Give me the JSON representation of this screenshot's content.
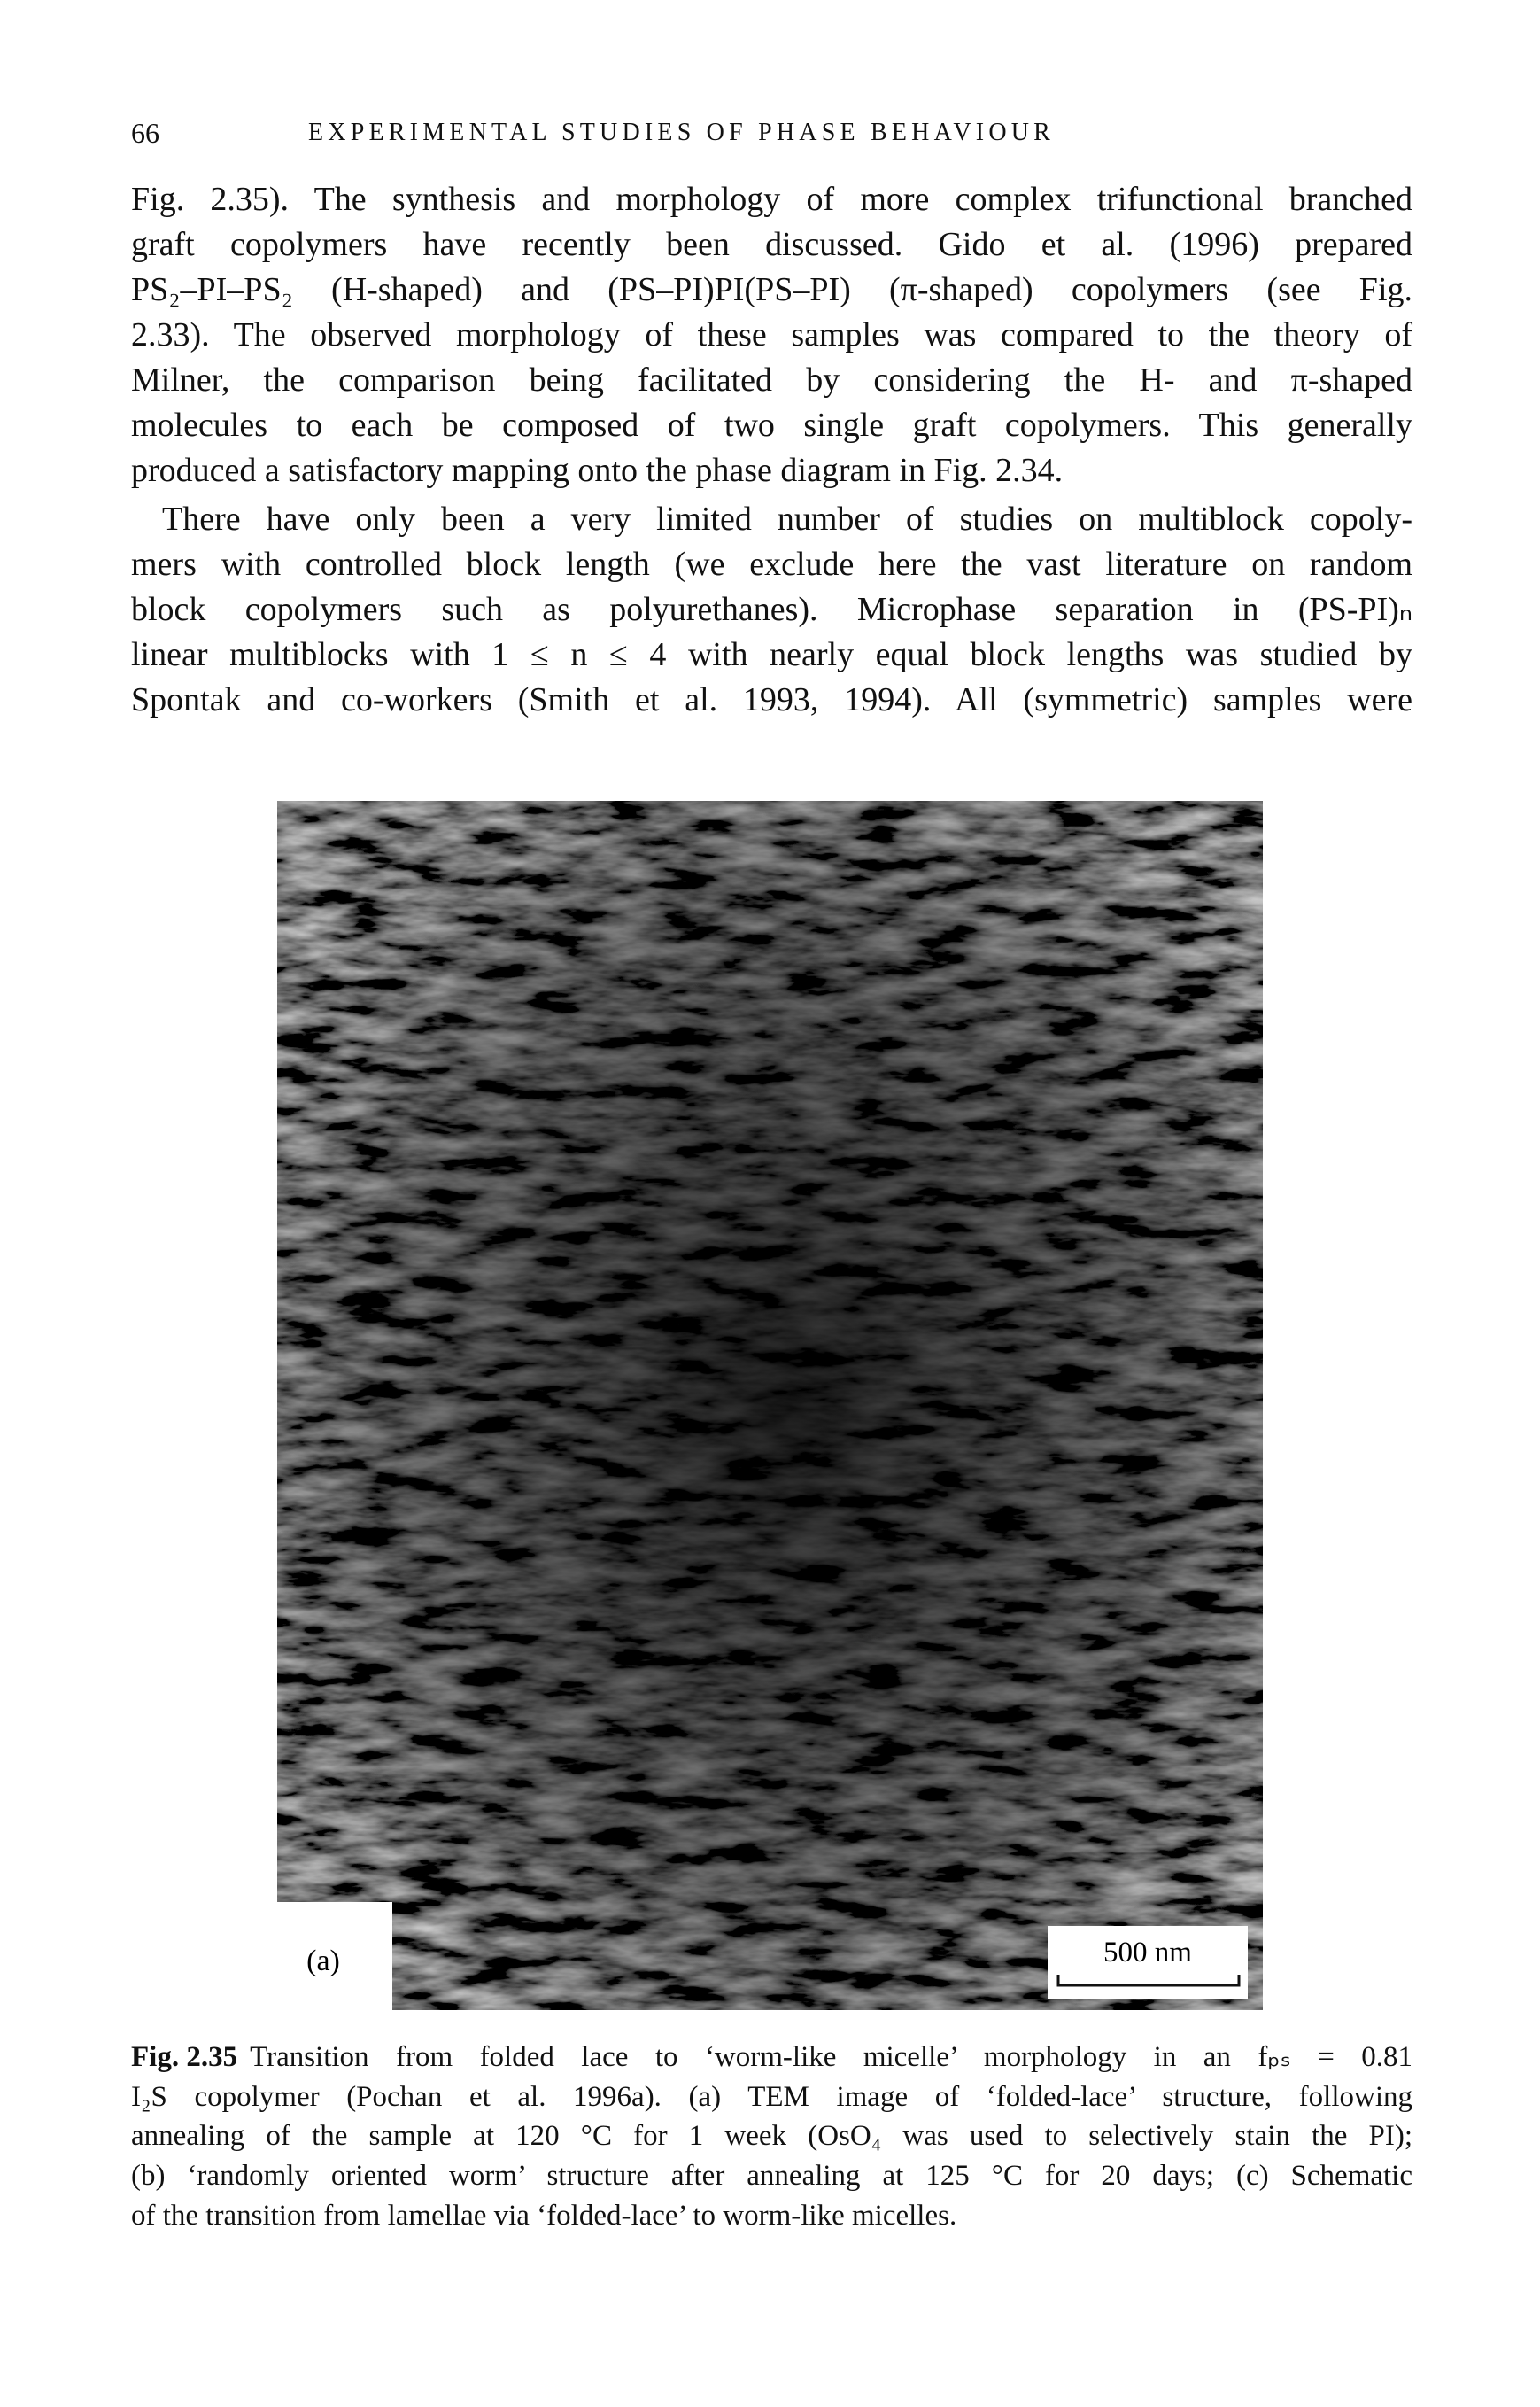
{
  "header": {
    "page_number": "66",
    "running_title": "EXPERIMENTAL STUDIES OF PHASE BEHAVIOUR"
  },
  "body": {
    "paragraphs": [
      [
        "Fig. 2.35). The synthesis and morphology of more complex trifunctional branched",
        "graft copolymers have recently been discussed. Gido et al. (1996) prepared",
        "PS₂–PI–PS₂ (H-shaped) and (PS–PI)PI(PS–PI) (π-shaped) copolymers (see Fig.",
        "2.33). The observed morphology of these samples was compared to the theory of",
        "Milner, the comparison being facilitated by considering the H- and π-shaped",
        "molecules to each be composed of two single graft copolymers. This generally",
        "produced a satisfactory mapping onto the phase diagram in Fig. 2.34."
      ],
      [
        "There have only been a very limited number of studies on multiblock copoly-",
        "mers with controlled block length (we exclude here the vast literature on random",
        "block copolymers such as polyurethanes). Microphase separation in (PS-PI)ₙ",
        "linear multiblocks with 1 ≤ n ≤ 4 with nearly equal block lengths was studied by",
        "Spontak and co-workers (Smith et al. 1993, 1994). All (symmetric) samples were"
      ]
    ]
  },
  "figure": {
    "panel_label": "(a)",
    "scale_bar": "500 nm",
    "caption": {
      "label": "Fig. 2.35",
      "lines": [
        "Transition from folded lace to ‘worm-like micelle’ morphology in an fₚₛ = 0.81",
        "I₂S copolymer (Pochan et al. 1996a). (a) TEM image of ‘folded-lace’ structure, following",
        "annealing of the sample at 120 °C for 1 week (OsO₄ was used to selectively stain the PI);",
        "(b) ‘randomly oriented worm’ structure after annealing at 125 °C for 20 days; (c) Schematic",
        "of the transition from lamellae via ‘folded-lace’ to worm-like micelles."
      ]
    }
  }
}
